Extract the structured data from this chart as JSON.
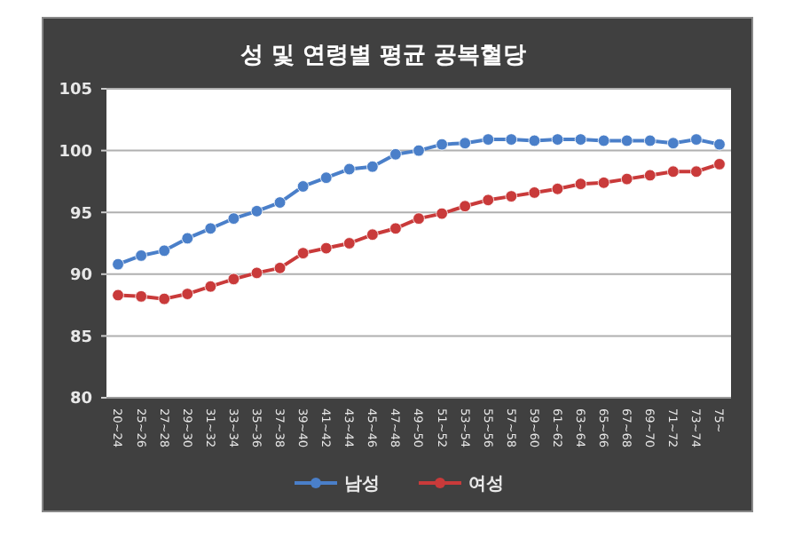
{
  "chart_data": {
    "type": "line",
    "title": "성 및 연령별 평균 공복혈당",
    "categories": [
      "20~24",
      "25~26",
      "27~28",
      "29~30",
      "31~32",
      "33~34",
      "35~36",
      "37~38",
      "39~40",
      "41~42",
      "43~44",
      "45~46",
      "47~48",
      "49~50",
      "51~52",
      "53~54",
      "55~56",
      "57~58",
      "59~60",
      "61~62",
      "63~64",
      "65~66",
      "67~68",
      "69~70",
      "71~72",
      "73~74",
      "75~"
    ],
    "series": [
      {
        "name": "남성",
        "color": "#4a7fc9",
        "values": [
          90.8,
          91.5,
          91.9,
          92.9,
          93.7,
          94.5,
          95.1,
          95.8,
          97.1,
          97.8,
          98.5,
          98.7,
          99.7,
          100.0,
          100.5,
          100.6,
          100.9,
          100.9,
          100.8,
          100.9,
          100.9,
          100.8,
          100.8,
          100.8,
          100.6,
          100.9,
          100.5
        ]
      },
      {
        "name": "여성",
        "color": "#c93a3a",
        "values": [
          88.3,
          88.2,
          88.0,
          88.4,
          89.0,
          89.6,
          90.1,
          90.5,
          91.7,
          92.1,
          92.5,
          93.2,
          93.7,
          94.5,
          94.9,
          95.5,
          96.0,
          96.3,
          96.6,
          96.9,
          97.3,
          97.4,
          97.7,
          98.0,
          98.3,
          98.3,
          98.9
        ]
      }
    ],
    "ylim": [
      80,
      105
    ],
    "yticks": [
      80,
      85,
      90,
      95,
      100,
      105
    ],
    "grid": "y",
    "legend": "bottom",
    "marker": "circle",
    "line_style": "solid"
  }
}
